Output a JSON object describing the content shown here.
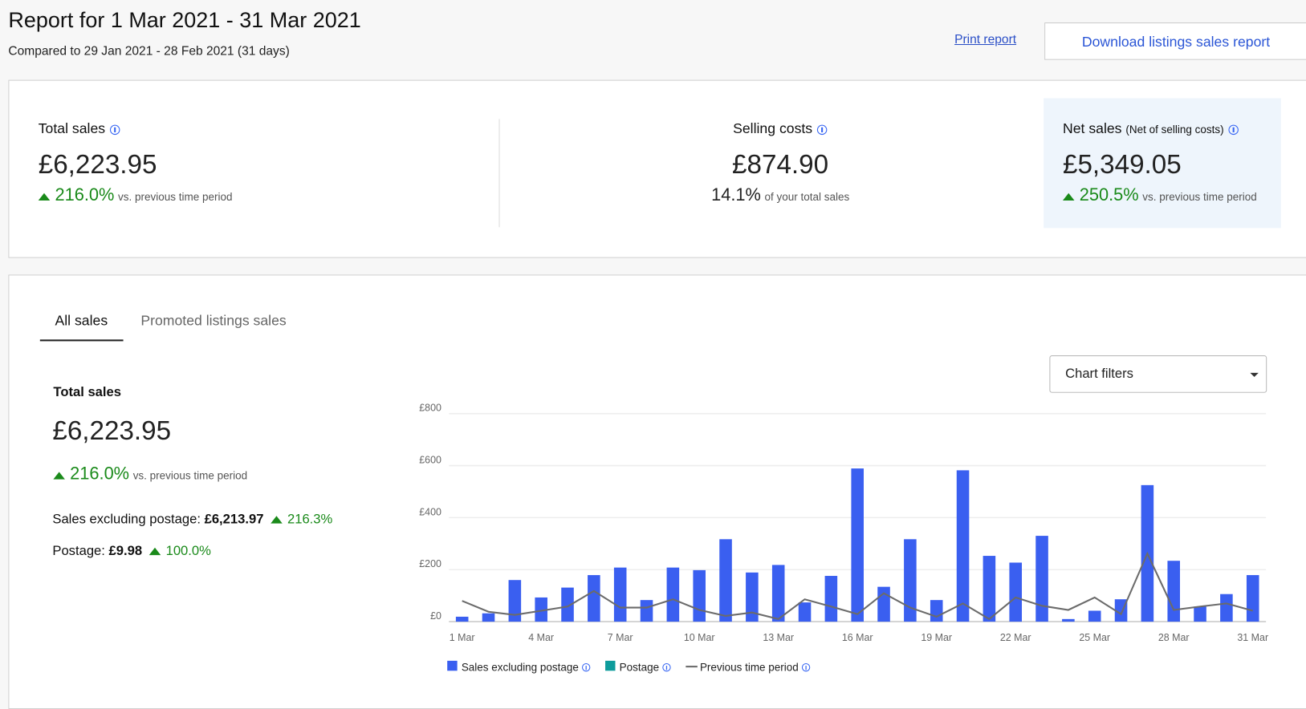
{
  "header": {
    "title": "Report for 1 Mar 2021 - 31 Mar 2021",
    "subtitle": "Compared to 29 Jan 2021 - 28 Feb 2021 (31 days)",
    "print_link": "Print report",
    "download_button": "Download listings sales report"
  },
  "summary": {
    "items": [
      {
        "label": "Total sales",
        "value": "£6,223.95",
        "change": "216.0%",
        "change_note": "vs. previous time period"
      },
      {
        "label": "Selling costs",
        "value": "£874.90",
        "percent": "14.1%",
        "percent_note": "of your total sales"
      },
      {
        "label": "Net sales",
        "sublabel": "(Net of selling costs)",
        "value": "£5,349.05",
        "change": "250.5%",
        "change_note": "vs. previous time period"
      }
    ]
  },
  "tabs": [
    "All sales",
    "Promoted listings sales"
  ],
  "panel": {
    "title": "Total sales",
    "value": "£6,223.95",
    "change": "216.0%",
    "change_note": "vs. previous time period",
    "breakdown": [
      {
        "label": "Sales excluding postage:",
        "value": "£6,213.97",
        "change": "216.3%"
      },
      {
        "label": "Postage:",
        "value": "£9.98",
        "change": "100.0%"
      }
    ]
  },
  "filters_label": "Chart filters",
  "chart_data": {
    "type": "bar",
    "categories": [
      "1 Mar",
      null,
      null,
      "4 Mar",
      null,
      null,
      "7 Mar",
      null,
      null,
      "10 Mar",
      null,
      null,
      "13 Mar",
      null,
      null,
      "16 Mar",
      null,
      null,
      "19 Mar",
      null,
      null,
      "22 Mar",
      null,
      null,
      "25 Mar",
      null,
      null,
      "28 Mar",
      null,
      null,
      "31 Mar"
    ],
    "series": [
      {
        "name": "Sales excluding postage",
        "color": "#3a5ff0",
        "type": "bar",
        "values": [
          19,
          32,
          160,
          93,
          131,
          179,
          208,
          83,
          208,
          198,
          317,
          189,
          218,
          74,
          176,
          589,
          134,
          317,
          83,
          582,
          253,
          227,
          330,
          10,
          42,
          86,
          525,
          234,
          58,
          106,
          179
        ]
      },
      {
        "name": "Postage",
        "color": "#0e9c9c",
        "type": "bar",
        "values": [
          0,
          0,
          0,
          0,
          0,
          0,
          0,
          0,
          0,
          0,
          0,
          0,
          0,
          0,
          0,
          0,
          0,
          0,
          0,
          0,
          0,
          0,
          0,
          0,
          0,
          0,
          0,
          0,
          0,
          0,
          0
        ]
      },
      {
        "name": "Previous time period",
        "color": "#6b6b6b",
        "type": "line",
        "values": [
          80,
          38,
          26,
          42,
          58,
          118,
          54,
          54,
          86,
          45,
          22,
          35,
          10,
          86,
          58,
          29,
          109,
          54,
          19,
          70,
          10,
          93,
          61,
          45,
          93,
          29,
          262,
          45,
          58,
          70,
          42
        ]
      }
    ],
    "ylim": [
      0,
      800
    ],
    "yticks": [
      {
        "value": 0,
        "label": "£0"
      },
      {
        "value": 200,
        "label": "£200"
      },
      {
        "value": 400,
        "label": "£400"
      },
      {
        "value": 600,
        "label": "£600"
      },
      {
        "value": 800,
        "label": "£800"
      }
    ],
    "grid": true
  }
}
